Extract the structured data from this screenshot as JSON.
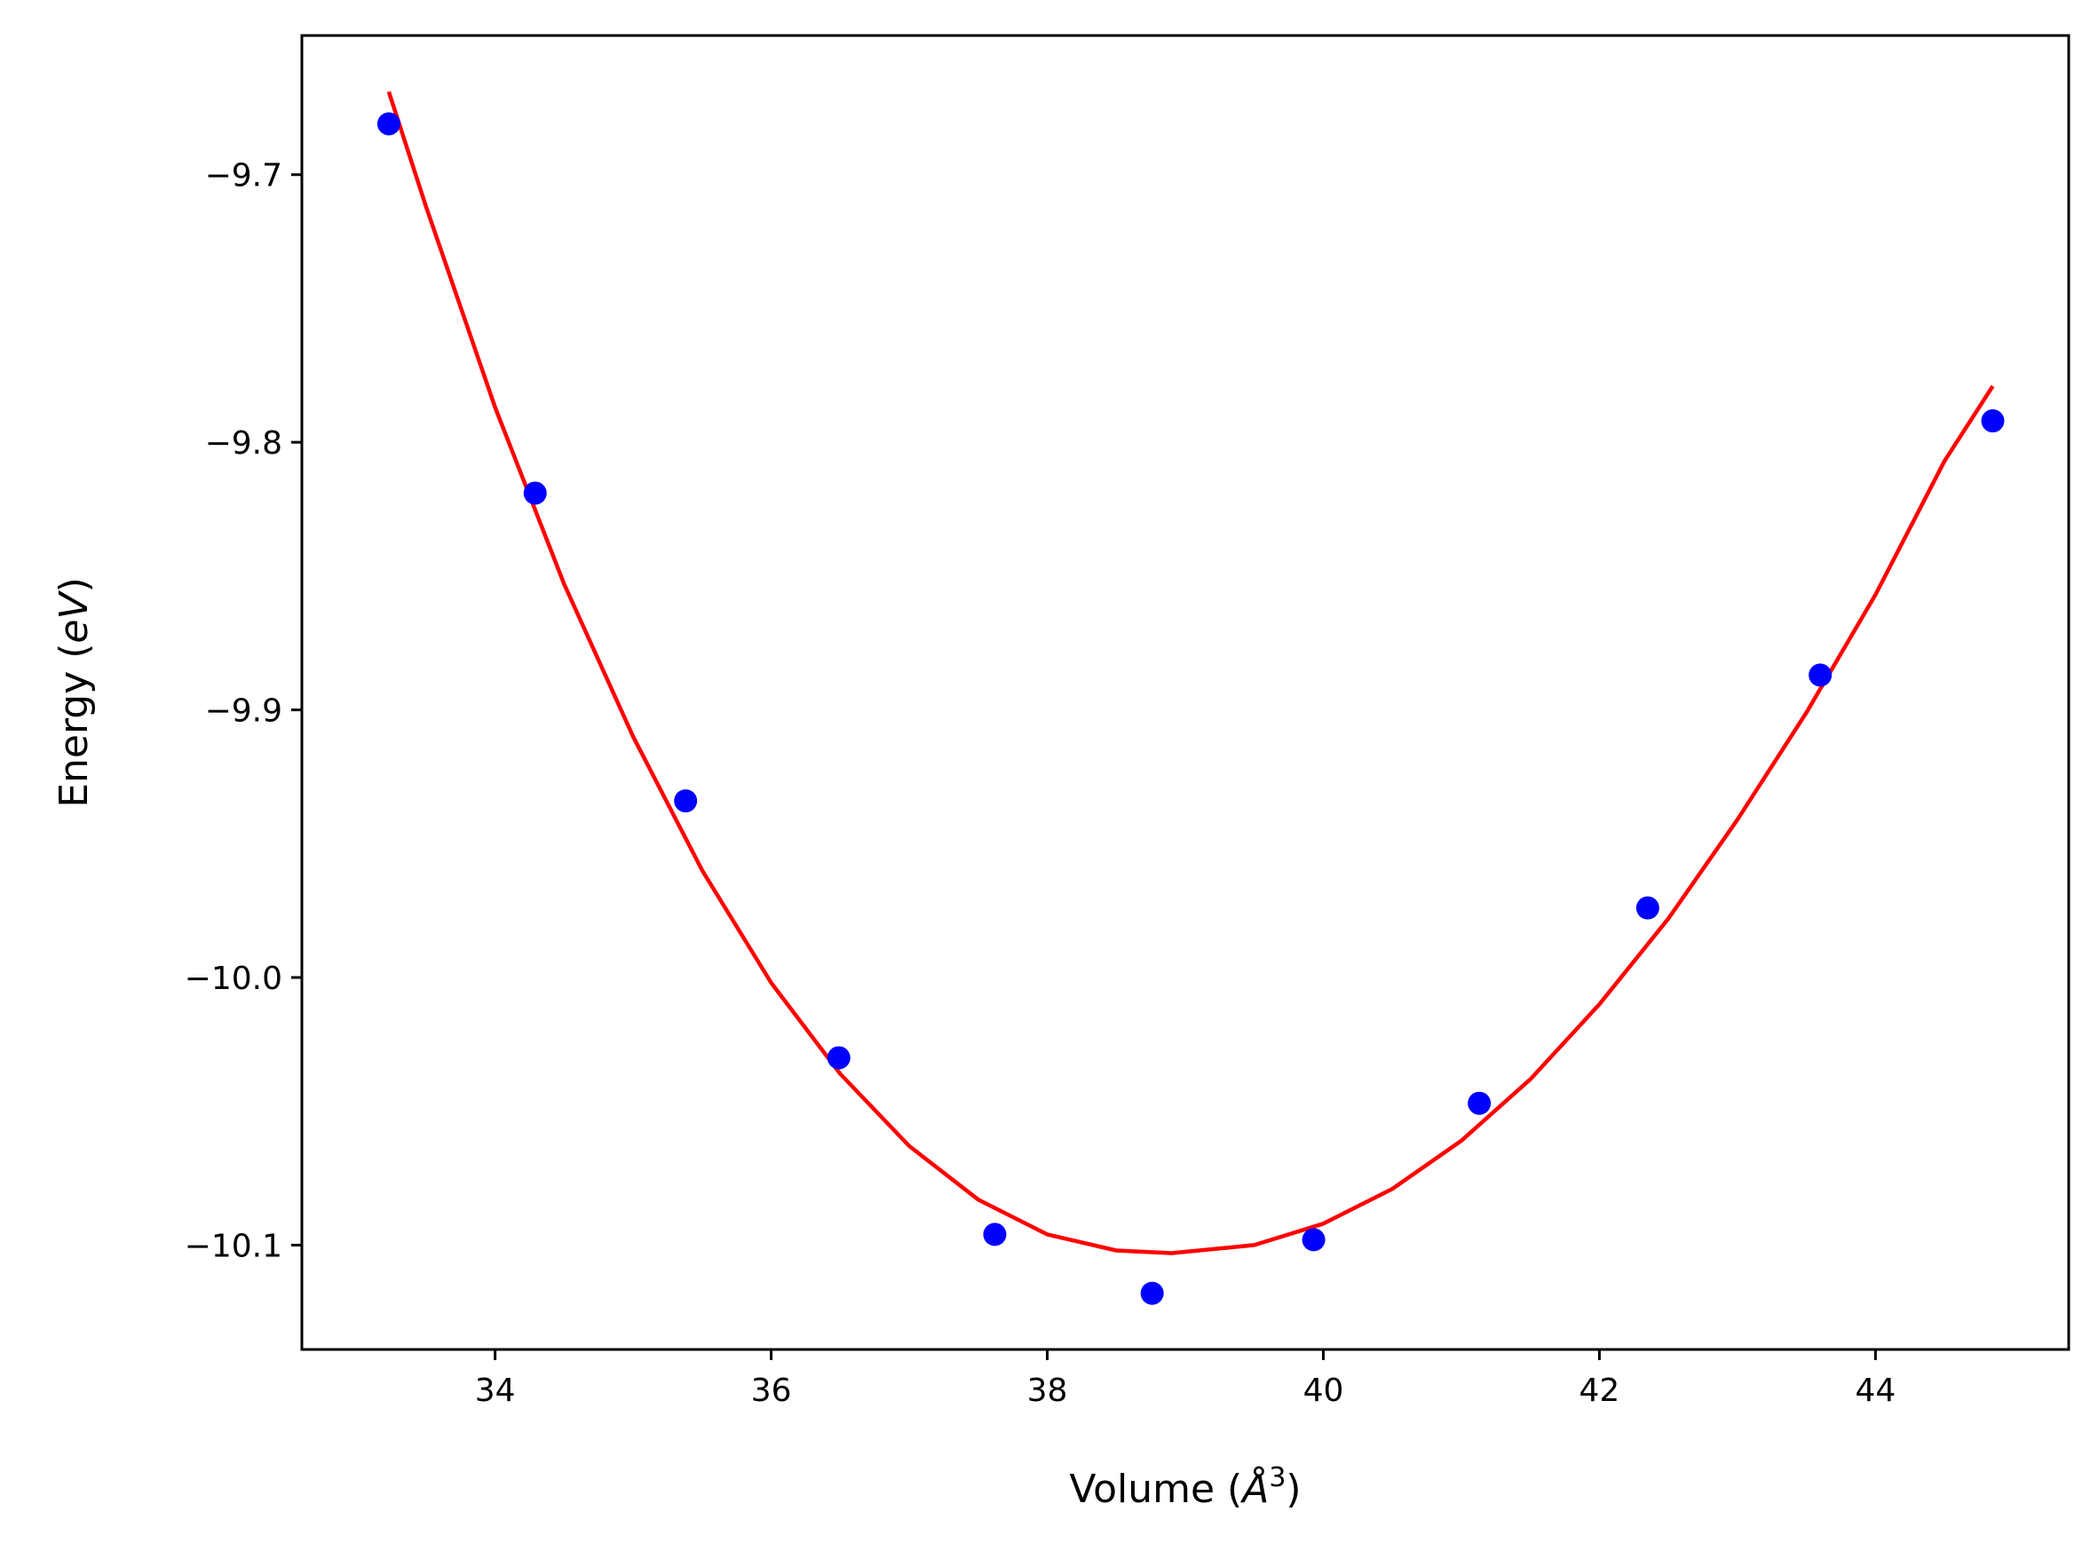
{
  "chart_data": {
    "type": "scatter",
    "title": "",
    "xlabel": "Volume (Å³)",
    "ylabel": "Energy (eV)",
    "xlabel_parts": {
      "prefix": "Volume (",
      "symbol": "Å",
      "sup": "3",
      "suffix": ")"
    },
    "ylabel_parts": {
      "prefix": "Energy (",
      "symbol": "eV",
      "suffix": ")"
    },
    "xlim": [
      32.6,
      45.4
    ],
    "ylim": [
      -10.139,
      -9.648
    ],
    "x_ticks": [
      34,
      36,
      38,
      40,
      42,
      44
    ],
    "x_tick_labels": [
      "34",
      "36",
      "38",
      "40",
      "42",
      "44"
    ],
    "y_ticks": [
      -9.7,
      -9.8,
      -9.9,
      -10.0,
      -10.1
    ],
    "y_tick_labels": [
      "−9.7",
      "−9.8",
      "−9.9",
      "−10.0",
      "−10.1"
    ],
    "grid": false,
    "series": [
      {
        "kind": "scatter",
        "color": "#0000ff",
        "x": [
          33.23,
          34.29,
          35.38,
          36.49,
          37.62,
          38.76,
          39.93,
          41.13,
          42.35,
          43.6,
          44.85
        ],
        "y": [
          -9.681,
          -9.819,
          -9.934,
          -10.03,
          -10.096,
          -10.118,
          -10.098,
          -10.047,
          -9.974,
          -9.887,
          -9.792
        ]
      },
      {
        "kind": "line",
        "color": "#ff0000",
        "x": [
          33.23,
          33.5,
          34.0,
          34.5,
          35.0,
          35.5,
          36.0,
          36.5,
          37.0,
          37.5,
          38.0,
          38.5,
          38.9,
          39.5,
          40.0,
          40.5,
          41.0,
          41.5,
          42.0,
          42.5,
          43.0,
          43.5,
          44.0,
          44.5,
          44.85
        ],
        "y": [
          -9.669,
          -9.712,
          -9.787,
          -9.853,
          -9.91,
          -9.96,
          -10.002,
          -10.036,
          -10.063,
          -10.083,
          -10.096,
          -10.102,
          -10.103,
          -10.1,
          -10.092,
          -10.079,
          -10.061,
          -10.038,
          -10.01,
          -9.978,
          -9.941,
          -9.901,
          -9.857,
          -9.807,
          -9.779
        ]
      }
    ]
  }
}
